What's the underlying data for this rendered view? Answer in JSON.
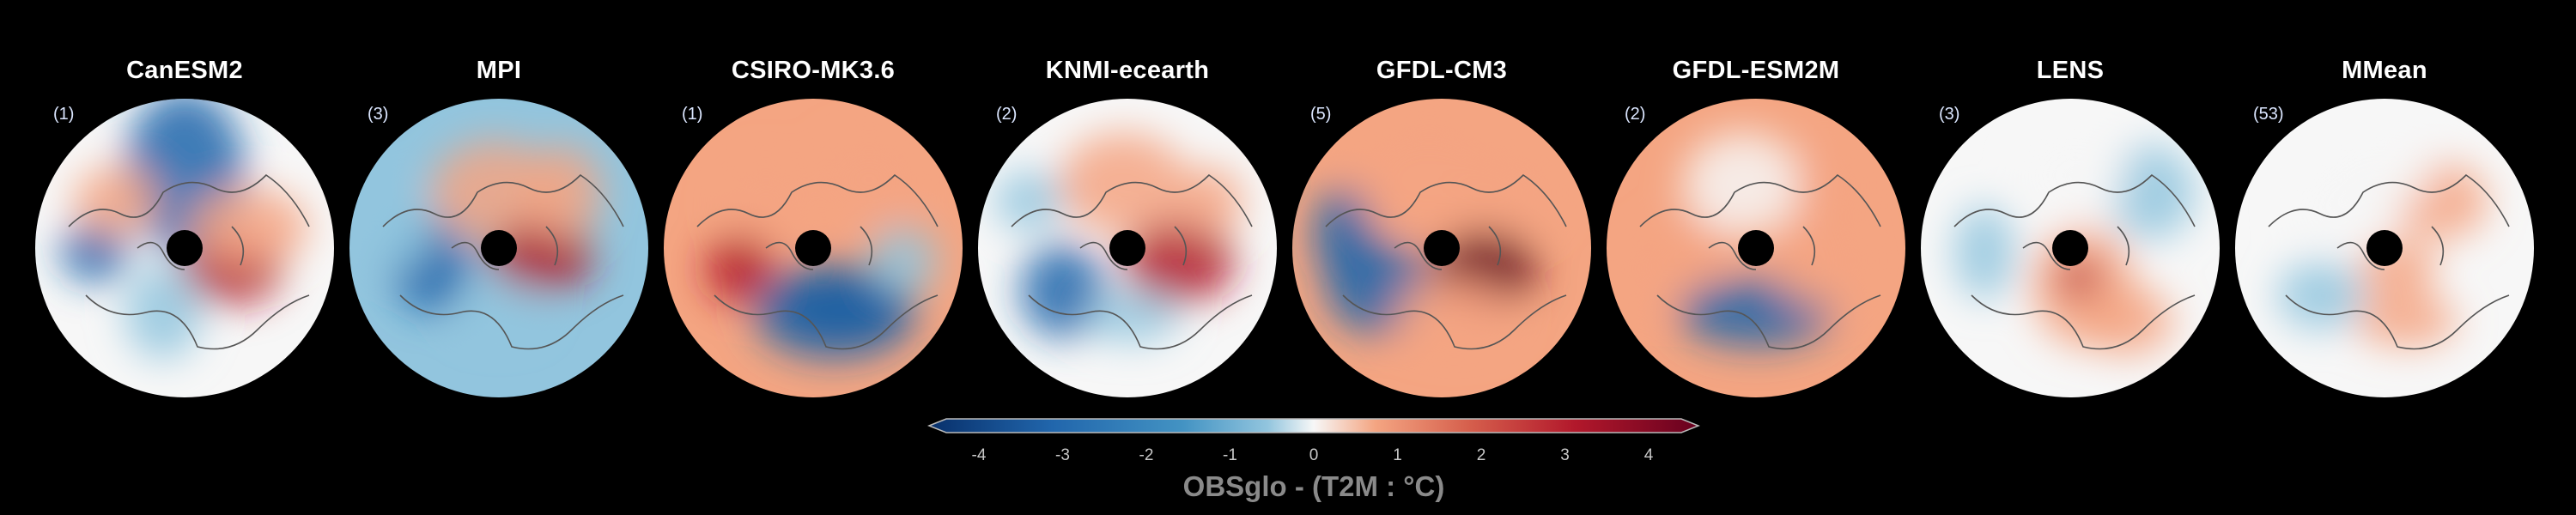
{
  "colors": {
    "background": "#000000",
    "cold_extreme": "#08306b",
    "cold": "#2166ac",
    "cool": "#92c5de",
    "neutral": "#f7f7f7",
    "warm": "#f4a582",
    "hot": "#b2182b",
    "hot_extreme": "#67001f",
    "coastline": "#555555"
  },
  "panels": [
    {
      "title": "CanESM2",
      "count": "(1)"
    },
    {
      "title": "MPI",
      "count": "(3)"
    },
    {
      "title": "CSIRO-MK3.6",
      "count": "(1)"
    },
    {
      "title": "KNMI-ecearth",
      "count": "(2)"
    },
    {
      "title": "GFDL-CM3",
      "count": "(5)"
    },
    {
      "title": "GFDL-ESM2M",
      "count": "(2)"
    },
    {
      "title": "LENS",
      "count": "(3)"
    },
    {
      "title": "MMean",
      "count": "(53)"
    }
  ],
  "colorbar": {
    "ticks": [
      "-4",
      "-3",
      "-2",
      "-1",
      "0",
      "1",
      "2",
      "3",
      "4"
    ],
    "min": -4,
    "max": 4,
    "label": "OBSglo - (T2M : °C)"
  }
}
